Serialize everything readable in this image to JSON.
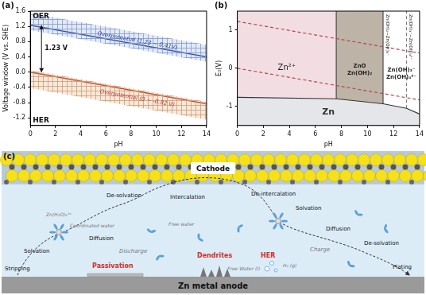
{
  "chart_data": [
    {
      "type": "line",
      "title": "(a)",
      "x_label": "pH",
      "y_label": "Voltage window (V vs. SHE)",
      "xlim": [
        0,
        14
      ],
      "xticks": [
        0,
        2,
        4,
        6,
        8,
        10,
        12,
        14
      ],
      "ylim": [
        -1.4,
        1.6
      ],
      "yticks": [
        -1.2,
        -0.8,
        -0.4,
        {
          "value": 0,
          "label": "0.0"
        },
        0.4,
        0.8,
        1.2,
        1.6
      ],
      "grid": false,
      "x": [
        0,
        14
      ],
      "series": [
        {
          "color": "#2a3f9a",
          "values": [
            1.23,
            0.4
          ]
        },
        {
          "color": "#c0392b",
          "values": [
            0,
            -0.83
          ]
        }
      ],
      "bands": [
        {
          "label": "Overpotential (1.23 ~ 0.41V)",
          "color": "#7f9bd3",
          "upper": [
            1.55,
            0.72
          ],
          "lower": [
            1.1,
            0.27
          ]
        },
        {
          "label": "Overpotential (0 ~ -0.82 V)",
          "color": "#d49a6a",
          "upper": [
            0.05,
            -0.78
          ],
          "lower": [
            -0.42,
            -1.25
          ]
        }
      ],
      "annotations": [
        "OER",
        "HER",
        "1.23 V"
      ]
    },
    {
      "type": "area",
      "title": "(b)",
      "x_label": "pH",
      "y_label": "E₀(V)",
      "xlim": [
        0,
        14
      ],
      "xticks": [
        0,
        2,
        4,
        6,
        8,
        10,
        12,
        14
      ],
      "ylim": [
        -1.5,
        1.5
      ],
      "yticks": [
        -1,
        0,
        1
      ],
      "grid": false,
      "x": [
        0,
        14
      ],
      "series": [
        {
          "color": "#b5484d",
          "line_style": "dashed",
          "values": [
            1.23,
            0.4
          ]
        },
        {
          "color": "#b5484d",
          "line_style": "dashed",
          "values": [
            0,
            -0.83
          ]
        }
      ],
      "boundary": {
        "label": "Zn",
        "color": "#e4e6ea",
        "x": [
          0,
          7.6,
          11.2,
          13,
          14
        ],
        "values": [
          -0.76,
          -0.8,
          -0.93,
          -1.05,
          -1.2
        ]
      },
      "regions": [
        {
          "label": [
            "Zn²⁺"
          ],
          "x": [
            0,
            7.6
          ],
          "color": "#f2dde3"
        },
        {
          "label": [
            "ZnO",
            "Zn(OH)₂"
          ],
          "x": [
            7.6,
            11.2
          ],
          "color": "#bdb3a6"
        },
        {
          "label": [
            "Zn(OH)₃⁻",
            "Zn(OH)₄²⁻"
          ],
          "x": [
            11.2,
            14
          ],
          "color": "#ffffff"
        }
      ],
      "dividers": [
        {
          "x": 7.6,
          "line_style": "solid"
        },
        {
          "x": 11.2,
          "line_style": "solid",
          "label": "Zn(OH)₂~Zn(OH)₃⁻"
        },
        {
          "x": 13,
          "line_style": "dashed",
          "label": "Zn(OH)₃⁻~Zn(OH)₄²⁻"
        }
      ]
    }
  ],
  "diagram": {
    "labels": {
      "panel": "(c)",
      "cathode": "Cathode",
      "anode": "Zn metal anode",
      "stripping": "Stripping",
      "solvation_1": "Solvation",
      "complex": "Zn(H₂O)₆²⁺",
      "coordinated_water": "Coordinated water",
      "diffusion_1": "Diffusion",
      "discharge": "Discharge",
      "desolvation_1": "De-solvation",
      "intercalation": "Intercalation",
      "free_water": "Free water",
      "deintercalation": "De-intercalation",
      "solvation_2": "Solvation",
      "diffusion_2": "Diffusion",
      "charge": "Charge",
      "desolvation_2": "De-solvation",
      "plating": "Plating",
      "passivation": "Passivation",
      "dendrites": "Dendrites",
      "her": "HER",
      "her_water": "Free Water (l)",
      "h2": "H₂ (g)"
    }
  }
}
